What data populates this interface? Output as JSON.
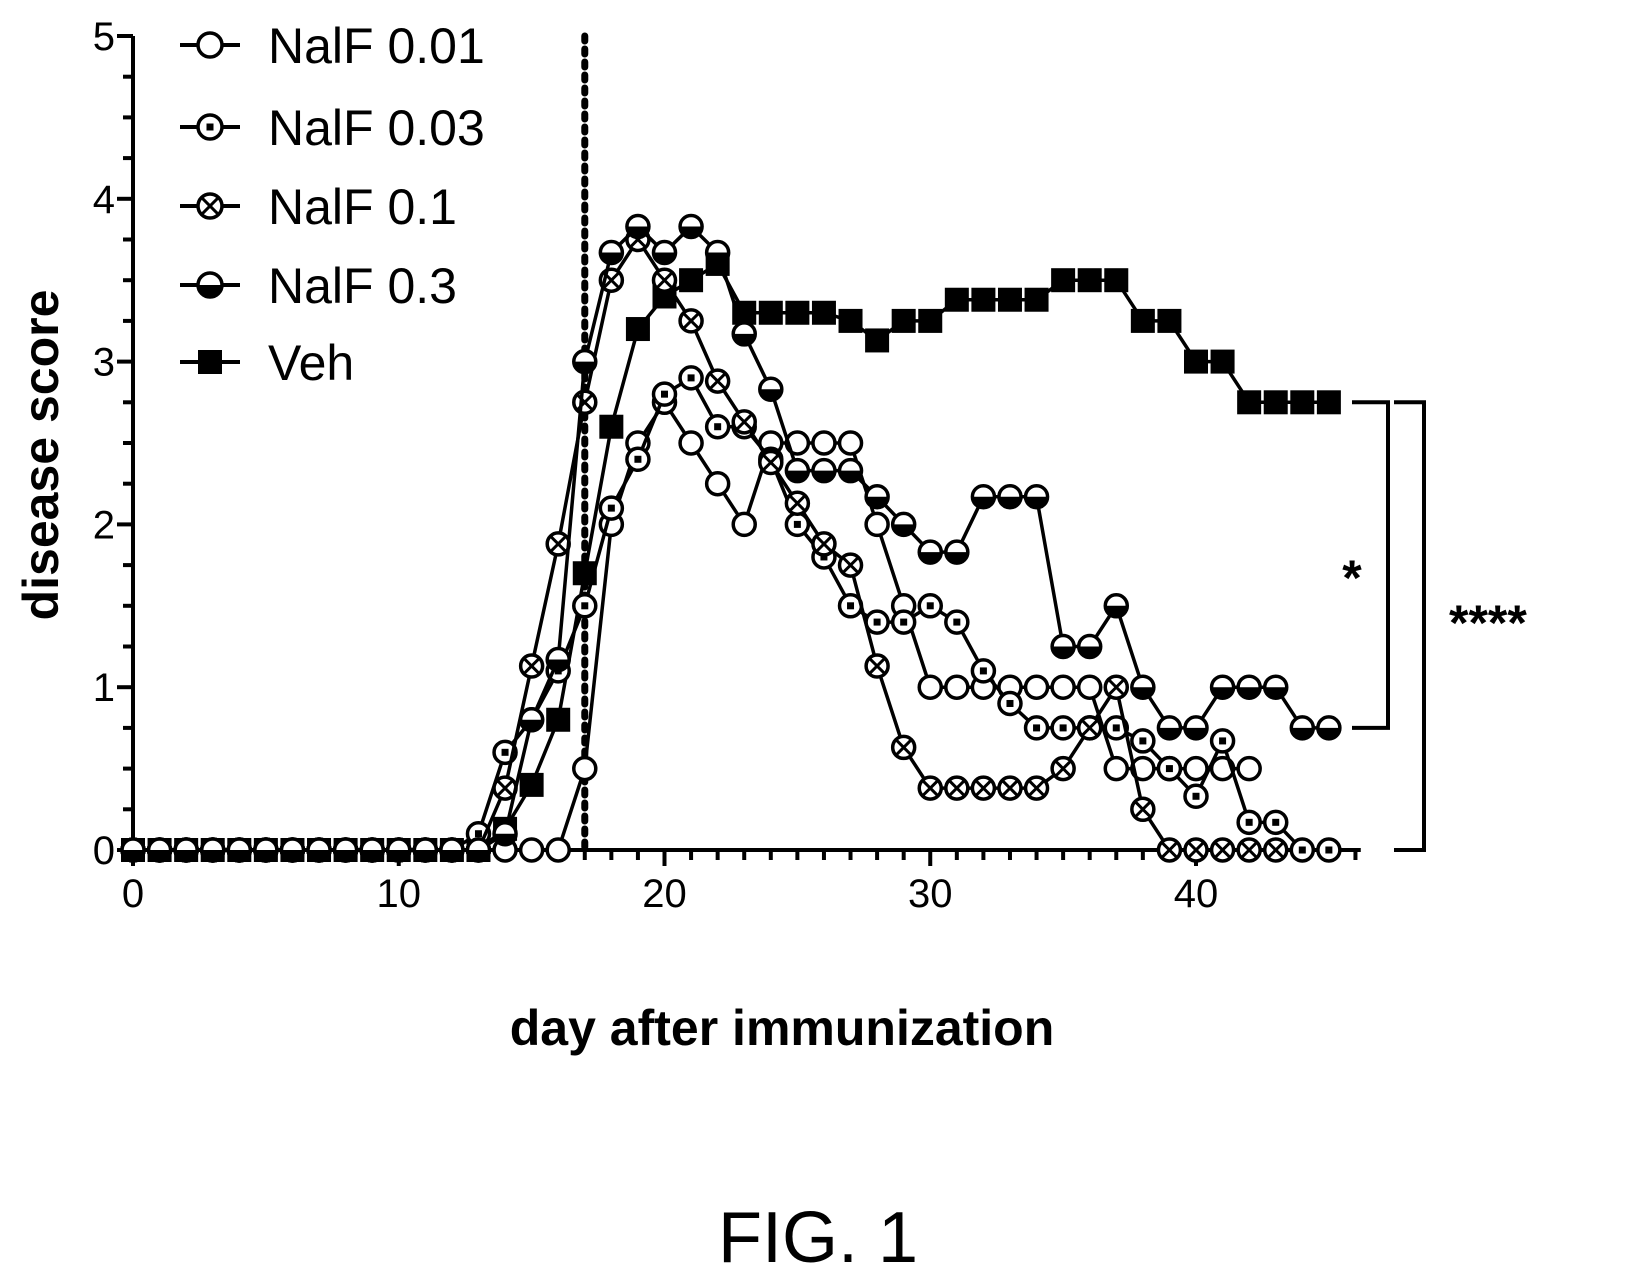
{
  "figure_caption": "FIG. 1",
  "chart_data": {
    "type": "line",
    "xlabel": "day after immunization",
    "ylabel": "disease score",
    "xlim": [
      0,
      46
    ],
    "ylim": [
      0,
      5
    ],
    "x_ticks": [
      0,
      10,
      20,
      30,
      40
    ],
    "y_ticks": [
      0,
      1,
      2,
      3,
      4,
      5
    ],
    "grid": false,
    "legend_position": "top-left",
    "reference_line": {
      "x": 17,
      "style": "dotted"
    },
    "series": [
      {
        "name": "NalF 0.01",
        "marker": "open-circle",
        "x": [
          0,
          1,
          2,
          3,
          4,
          5,
          6,
          7,
          8,
          9,
          10,
          11,
          12,
          13,
          14,
          15,
          16,
          17,
          18,
          19,
          20,
          21,
          22,
          23,
          24,
          25,
          26,
          27,
          28,
          29,
          30,
          31,
          32,
          33,
          34,
          35,
          36,
          37,
          38,
          39,
          40,
          41,
          42
        ],
        "y": [
          0,
          0,
          0,
          0,
          0,
          0,
          0,
          0,
          0,
          0,
          0,
          0,
          0,
          0,
          0,
          0,
          0,
          0.5,
          2,
          2.5,
          2.75,
          2.5,
          2.25,
          2,
          2.5,
          2.5,
          2.5,
          2.5,
          2,
          1.5,
          1,
          1,
          1,
          1,
          1,
          1,
          1,
          0.5,
          0.5,
          0.5,
          0.5,
          0.5,
          0.5
        ]
      },
      {
        "name": "NalF 0.03",
        "marker": "dotted-circle",
        "x": [
          0,
          1,
          2,
          3,
          4,
          5,
          6,
          7,
          8,
          9,
          10,
          11,
          12,
          13,
          14,
          15,
          16,
          17,
          18,
          19,
          20,
          21,
          22,
          23,
          24,
          25,
          26,
          27,
          28,
          29,
          30,
          31,
          32,
          33,
          34,
          35,
          36,
          37,
          38,
          39,
          40,
          41,
          42,
          43,
          44,
          45
        ],
        "y": [
          0,
          0,
          0,
          0,
          0,
          0,
          0,
          0,
          0,
          0,
          0,
          0,
          0,
          0.1,
          0.6,
          0.8,
          1.1,
          1.5,
          2.1,
          2.4,
          2.8,
          2.9,
          2.6,
          2.6,
          2.4,
          2,
          1.8,
          1.5,
          1.4,
          1.4,
          1.5,
          1.4,
          1.1,
          0.9,
          0.75,
          0.75,
          0.75,
          0.75,
          0.67,
          0.5,
          0.33,
          0.67,
          0.17,
          0.17,
          0,
          0
        ]
      },
      {
        "name": "NalF 0.1",
        "marker": "crossed-circle",
        "x": [
          0,
          1,
          2,
          3,
          4,
          5,
          6,
          7,
          8,
          9,
          10,
          11,
          12,
          13,
          14,
          15,
          16,
          17,
          18,
          19,
          20,
          21,
          22,
          23,
          24,
          25,
          26,
          27,
          28,
          29,
          30,
          31,
          32,
          33,
          34,
          35,
          36,
          37,
          38,
          39,
          40,
          41,
          42,
          43
        ],
        "y": [
          0,
          0,
          0,
          0,
          0,
          0,
          0,
          0,
          0,
          0,
          0,
          0,
          0,
          0,
          0.38,
          1.13,
          1.88,
          2.75,
          3.5,
          3.75,
          3.5,
          3.25,
          2.88,
          2.63,
          2.38,
          2.13,
          1.88,
          1.75,
          1.13,
          0.63,
          0.38,
          0.38,
          0.38,
          0.38,
          0.38,
          0.5,
          0.75,
          1,
          0.25,
          0,
          0,
          0,
          0,
          0
        ]
      },
      {
        "name": "NalF 0.3",
        "marker": "half-filled-circle",
        "x": [
          0,
          1,
          2,
          3,
          4,
          5,
          6,
          7,
          8,
          9,
          10,
          11,
          12,
          13,
          14,
          15,
          16,
          17,
          18,
          19,
          20,
          21,
          22,
          23,
          24,
          25,
          26,
          27,
          28,
          29,
          30,
          31,
          32,
          33,
          34,
          35,
          36,
          37,
          38,
          39,
          40,
          41,
          42,
          43,
          44,
          45
        ],
        "y": [
          0,
          0,
          0,
          0,
          0,
          0,
          0,
          0,
          0,
          0,
          0,
          0,
          0,
          0,
          0.1,
          0.8,
          1.17,
          3,
          3.67,
          3.83,
          3.67,
          3.83,
          3.67,
          3.17,
          2.83,
          2.33,
          2.33,
          2.33,
          2.17,
          2,
          1.83,
          1.83,
          2.17,
          2.17,
          2.17,
          1.25,
          1.25,
          1.5,
          1,
          0.75,
          0.75,
          1,
          1,
          1,
          0.75,
          0.75
        ]
      },
      {
        "name": "Veh",
        "marker": "filled-square",
        "x": [
          0,
          1,
          2,
          3,
          4,
          5,
          6,
          7,
          8,
          9,
          10,
          11,
          12,
          13,
          14,
          15,
          16,
          17,
          18,
          19,
          20,
          21,
          22,
          23,
          24,
          25,
          26,
          27,
          28,
          29,
          30,
          31,
          32,
          33,
          34,
          35,
          36,
          37,
          38,
          39,
          40,
          41,
          42,
          43,
          44,
          45
        ],
        "y": [
          0,
          0,
          0,
          0,
          0,
          0,
          0,
          0,
          0,
          0,
          0,
          0,
          0,
          0,
          0.13,
          0.4,
          0.8,
          1.7,
          2.6,
          3.2,
          3.4,
          3.5,
          3.6,
          3.3,
          3.3,
          3.3,
          3.3,
          3.25,
          3.13,
          3.25,
          3.25,
          3.38,
          3.38,
          3.38,
          3.38,
          3.5,
          3.5,
          3.5,
          3.25,
          3.25,
          3,
          3,
          2.75,
          2.75,
          2.75,
          2.75
        ]
      }
    ],
    "significance": [
      {
        "label": "*",
        "from_score": 2.75,
        "to_score": 0.75
      },
      {
        "label": "****",
        "from_score": 2.75,
        "to_score": 0
      }
    ]
  }
}
